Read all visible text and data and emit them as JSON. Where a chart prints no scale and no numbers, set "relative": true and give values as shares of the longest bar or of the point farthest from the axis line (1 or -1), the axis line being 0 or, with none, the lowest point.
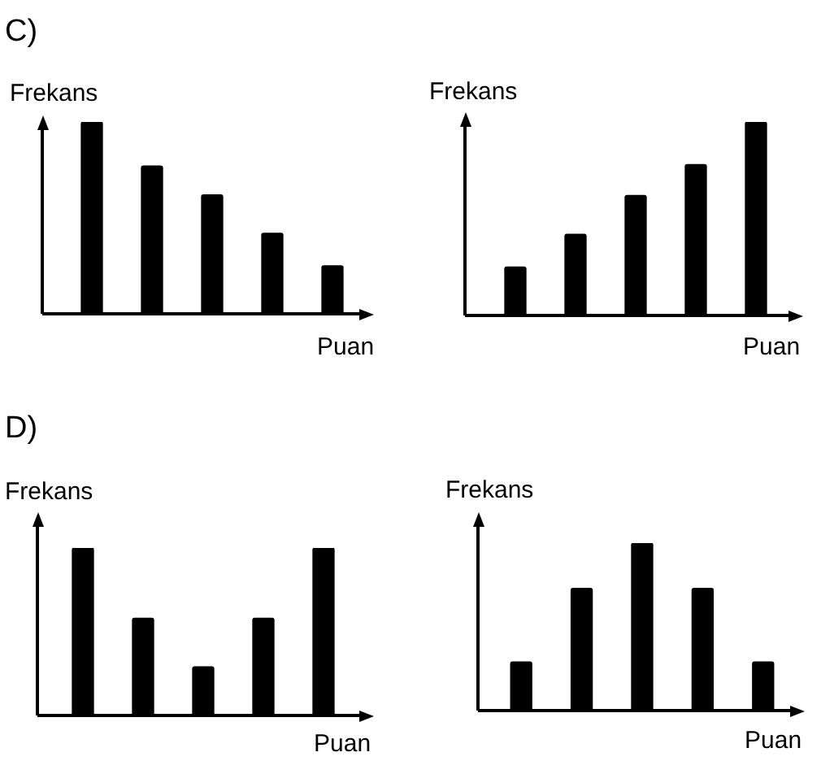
{
  "chart_data": [
    {
      "type": "bar",
      "title": "C)",
      "xlabel": "Puan",
      "ylabel": "Frekans",
      "categories": [
        null,
        null,
        null,
        null,
        null
      ],
      "values": [
        1,
        0.77,
        0.62,
        0.42,
        0.25
      ],
      "color": "#000000",
      "relative": true,
      "tick_labels": false
    },
    {
      "type": "bar",
      "xlabel": "Puan",
      "ylabel": "Frekans",
      "categories": [
        null,
        null,
        null,
        null,
        null
      ],
      "values": [
        0.25,
        0.42,
        0.62,
        0.78,
        1
      ],
      "color": "#000000",
      "relative": true,
      "tick_labels": false
    },
    {
      "type": "bar",
      "title": "D)",
      "xlabel": "Puan",
      "ylabel": "Frekans",
      "categories": [
        null,
        null,
        null,
        null,
        null
      ],
      "values": [
        1,
        0.58,
        0.29,
        0.58,
        1
      ],
      "color": "#000000",
      "relative": true,
      "tick_labels": false
    },
    {
      "type": "bar",
      "xlabel": "Puan",
      "ylabel": "Frekans",
      "categories": [
        null,
        null,
        null,
        null,
        null
      ],
      "values": [
        0.29,
        0.73,
        1,
        0.73,
        0.29
      ],
      "color": "#000000",
      "relative": true,
      "tick_labels": false
    }
  ]
}
